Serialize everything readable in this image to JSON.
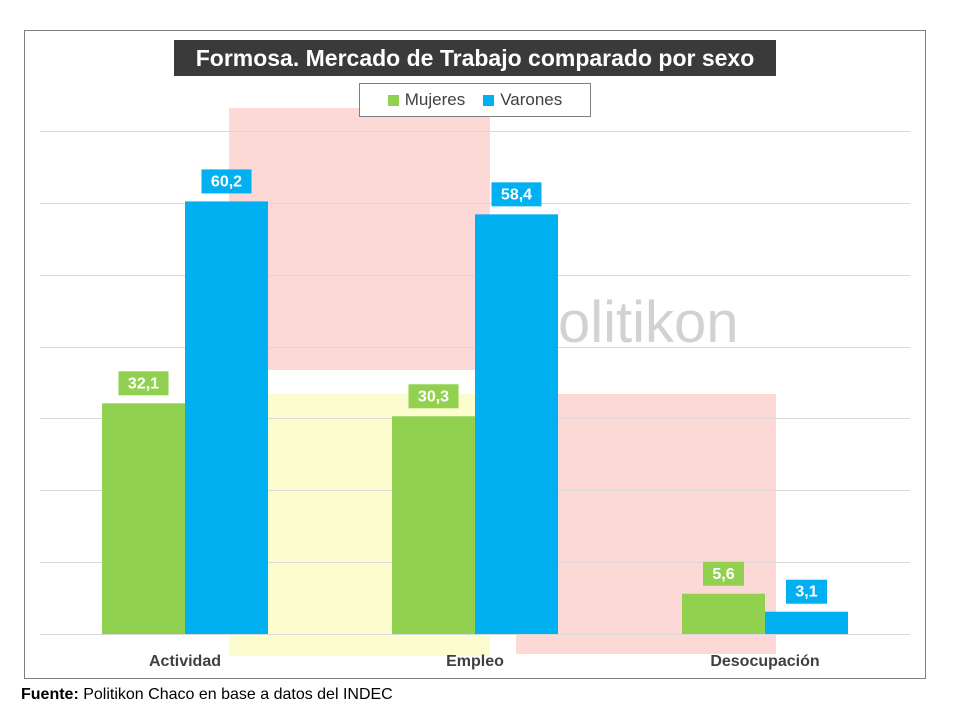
{
  "source": {
    "label": "Fuente:",
    "text": " Politikon Chaco en base a datos del INDEC"
  },
  "watermark": "olitikon",
  "chart_data": {
    "type": "bar",
    "title": "Formosa. Mercado de Trabajo comparado por sexo",
    "categories": [
      "Actividad",
      "Empleo",
      "Desocupación"
    ],
    "series": [
      {
        "name": "Mujeres",
        "values": [
          32.1,
          30.3,
          5.6
        ],
        "labels": [
          "32,1",
          "30,3",
          "5,6"
        ],
        "color": "#92d050"
      },
      {
        "name": "Varones",
        "values": [
          60.2,
          58.4,
          3.1
        ],
        "labels": [
          "60,2",
          "58,4",
          "3,1"
        ],
        "color": "#00b0f0"
      }
    ],
    "ylim": [
      0,
      70
    ],
    "grid": true,
    "legend_position": "top"
  }
}
